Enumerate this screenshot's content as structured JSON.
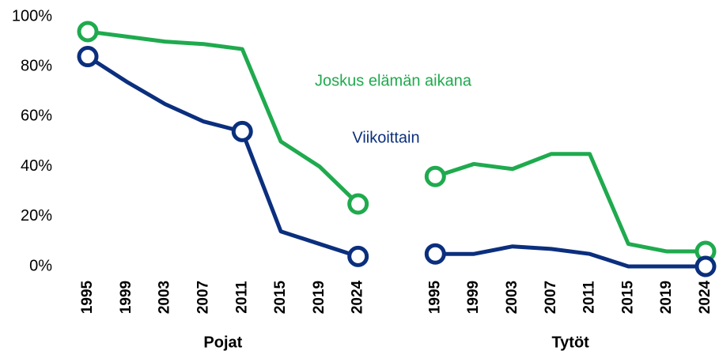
{
  "chart_data": {
    "type": "line",
    "categories": [
      "1995",
      "1999",
      "2003",
      "2007",
      "2011",
      "2015",
      "2019",
      "2024",
      null,
      "1995",
      "1999",
      "2003",
      "2007",
      "2011",
      "2015",
      "2019",
      "2024"
    ],
    "groups": [
      "Pojat",
      "Tytöt"
    ],
    "series": [
      {
        "name": "Joskus elämän aikana",
        "color": "#1faa4e",
        "marker_indices": [
          0,
          7,
          9,
          16
        ],
        "values": [
          94,
          92,
          90,
          89,
          87,
          50,
          40,
          25,
          null,
          36,
          41,
          39,
          45,
          45,
          9,
          6,
          6
        ]
      },
      {
        "name": "Viikoittain",
        "color": "#0b2f7e",
        "marker_indices": [
          0,
          4,
          7,
          9,
          16
        ],
        "values": [
          84,
          74,
          65,
          58,
          54,
          14,
          9,
          4,
          null,
          5,
          5,
          8,
          7,
          5,
          0,
          0,
          0
        ]
      }
    ],
    "ylim": [
      0,
      100
    ],
    "yticks": [
      {
        "value": 0,
        "label": "0%"
      },
      {
        "value": 20,
        "label": "20%"
      },
      {
        "value": 40,
        "label": "40%"
      },
      {
        "value": 60,
        "label": "60%"
      },
      {
        "value": 80,
        "label": "80%"
      },
      {
        "value": 100,
        "label": "100%"
      }
    ],
    "grid": false
  }
}
